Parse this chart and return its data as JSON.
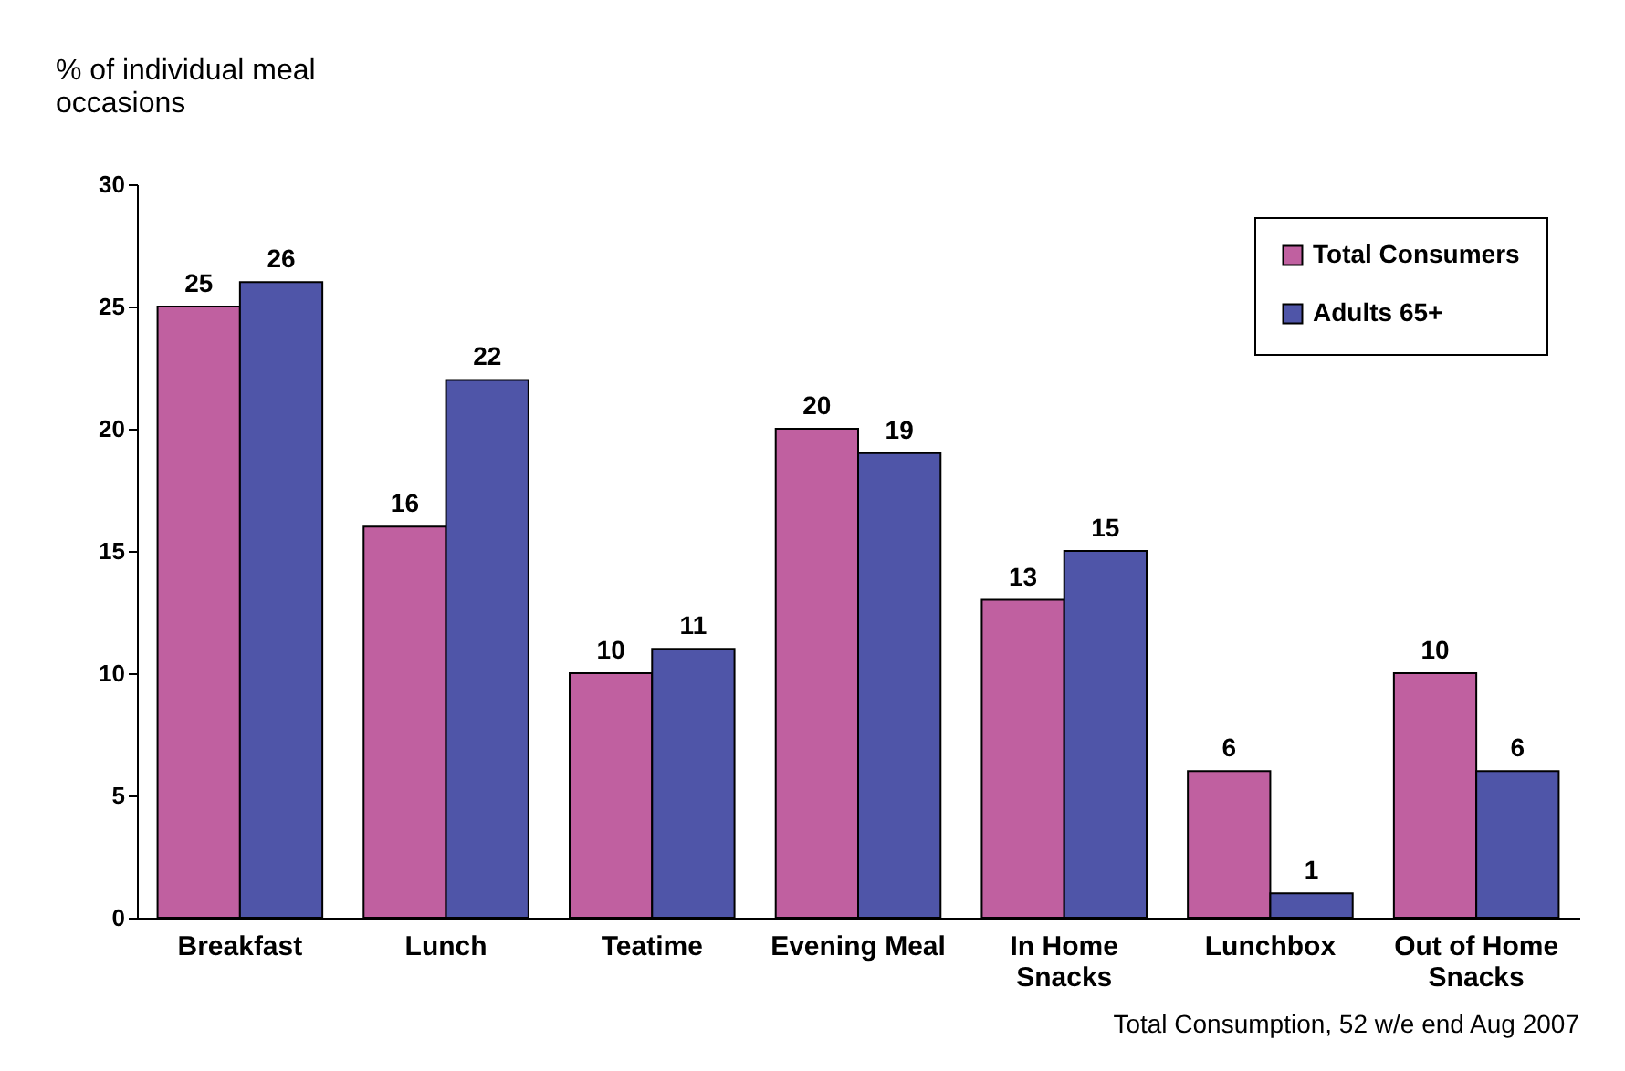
{
  "chart_data": {
    "type": "bar",
    "ylabel": "% of individual meal occasions",
    "categories": [
      "Breakfast",
      "Lunch",
      "Teatime",
      "Evening Meal",
      "In Home Snacks",
      "Lunchbox",
      "Out of Home Snacks"
    ],
    "series": [
      {
        "name": "Total Consumers",
        "color": "#c060a0",
        "values": [
          25,
          16,
          10,
          20,
          13,
          6,
          10
        ]
      },
      {
        "name": "Adults 65+",
        "color": "#4f55a8",
        "values": [
          26,
          22,
          11,
          19,
          15,
          1,
          6
        ]
      }
    ],
    "ylim": [
      0,
      30
    ],
    "yticks": [
      0,
      5,
      10,
      15,
      20,
      25,
      30
    ],
    "data_labels": true,
    "legend": "top right",
    "grid": false,
    "annotations": [
      "Total Consumption, 52 w/e end Aug 2007"
    ]
  }
}
